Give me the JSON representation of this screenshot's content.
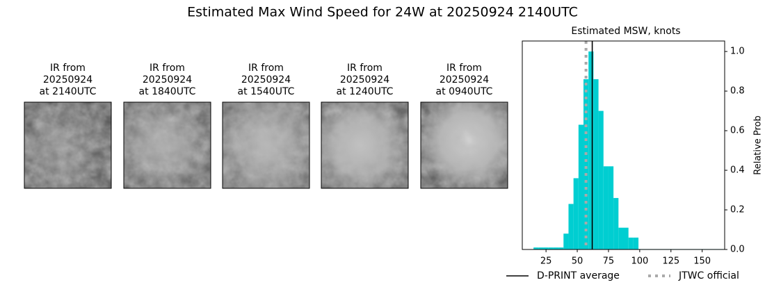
{
  "title": "Estimated Max Wind Speed for 24W at 20250924 2140UTC",
  "panels": [
    {
      "lines": [
        "IR from",
        "20250924",
        "at 2140UTC"
      ]
    },
    {
      "lines": [
        "IR from",
        "20250924",
        "at 1840UTC"
      ]
    },
    {
      "lines": [
        "IR from",
        "20250924",
        "at 1540UTC"
      ]
    },
    {
      "lines": [
        "IR from",
        "20250924",
        "at 1240UTC"
      ]
    },
    {
      "lines": [
        "IR from",
        "20250924",
        "at 0940UTC"
      ]
    }
  ],
  "chart_data": {
    "type": "histogram",
    "title": "Estimated MSW, knots",
    "bins": [
      15,
      19,
      23,
      27,
      31,
      35,
      39,
      43,
      47,
      51,
      55,
      59,
      63,
      67,
      71,
      75,
      79,
      83,
      87,
      91,
      95,
      99,
      167
    ],
    "values": [
      0.01,
      0.01,
      0.01,
      0.01,
      0.01,
      0.01,
      0.08,
      0.23,
      0.36,
      0.63,
      0.86,
      1.0,
      0.86,
      0.7,
      0.42,
      0.42,
      0.26,
      0.11,
      0.11,
      0.06,
      0.06,
      0.002
    ],
    "color": "#00ced1",
    "xlim": [
      6,
      168
    ],
    "ylim": [
      0,
      1.053
    ],
    "xticks": [
      25,
      50,
      75,
      100,
      125,
      150
    ],
    "yticks": [
      {
        "value": 0,
        "label": "0.0"
      },
      0.2,
      0.4,
      0.6,
      0.8,
      {
        "value": 1,
        "label": "1.0"
      }
    ],
    "y_label": "Relative Prob",
    "y_axis_side": "right",
    "reference_lines": [
      {
        "name": "D-PRINT average",
        "value": 62,
        "color": "#000000",
        "style": "solid"
      },
      {
        "name": "JTWC official",
        "value": 57,
        "color": "#aaaaaa",
        "style": "dotted"
      }
    ],
    "legend": "lower center"
  }
}
